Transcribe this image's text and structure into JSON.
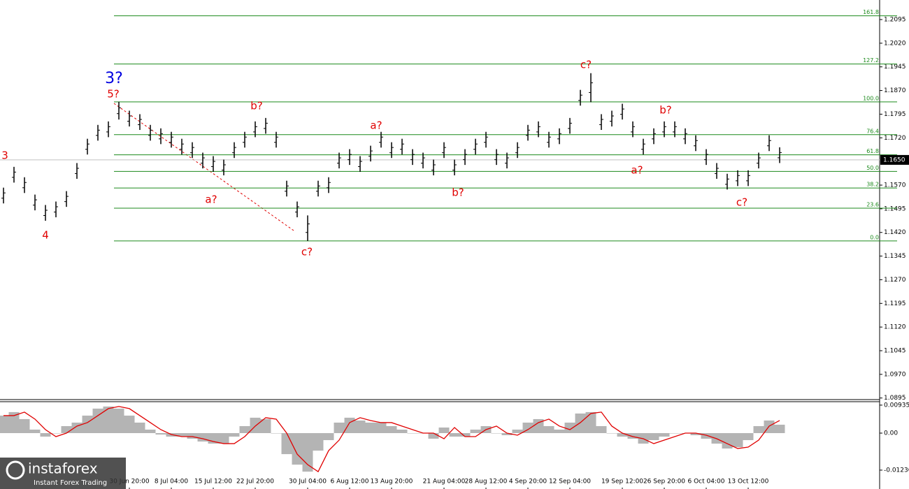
{
  "chart_data": [
    {
      "type": "range-bar",
      "categories": [
        null,
        null,
        null,
        null,
        null,
        null,
        null,
        null,
        null,
        null,
        null,
        null,
        "30 Jun 20:00",
        null,
        null,
        null,
        "8 Jul 04:00",
        null,
        null,
        null,
        "15 Jul 12:00",
        null,
        null,
        null,
        "22 Jul 20:00",
        null,
        null,
        null,
        null,
        "30 Jul 04:00",
        null,
        null,
        null,
        "6 Aug 12:00",
        null,
        null,
        null,
        "13 Aug 20:00",
        null,
        null,
        null,
        null,
        "21 Aug 04:00",
        null,
        null,
        null,
        "28 Aug 12:00",
        null,
        null,
        null,
        "4 Sep 20:00",
        null,
        null,
        null,
        "12 Sep 04:00",
        null,
        null,
        null,
        null,
        "19 Sep 12:00",
        null,
        null,
        null,
        "26 Sep 20:00",
        null,
        null,
        null,
        "6 Oct 04:00",
        null,
        null,
        null,
        "13 Oct 12:00",
        null,
        null,
        null
      ],
      "high": [
        1.1562,
        1.1628,
        1.1595,
        1.154,
        1.1507,
        1.1518,
        1.1551,
        1.164,
        1.1717,
        1.1761,
        1.1772,
        1.1834,
        1.1806,
        1.1795,
        1.1761,
        1.175,
        1.1739,
        1.1717,
        1.1706,
        1.1673,
        1.1662,
        1.1651,
        1.1706,
        1.1739,
        1.1772,
        1.1783,
        1.1739,
        1.1584,
        1.1518,
        1.1474,
        1.1584,
        1.1595,
        1.1673,
        1.1684,
        1.1662,
        1.1695,
        1.1739,
        1.1706,
        1.1717,
        1.1684,
        1.1673,
        1.1651,
        1.1706,
        1.1651,
        1.1684,
        1.1717,
        1.1739,
        1.1684,
        1.1673,
        1.1706,
        1.1761,
        1.1772,
        1.1739,
        1.175,
        1.1783,
        1.1872,
        1.1925,
        1.1795,
        1.1806,
        1.1828,
        1.1772,
        1.1717,
        1.175,
        1.1772,
        1.1772,
        1.175,
        1.1728,
        1.1684,
        1.164,
        1.1606,
        1.1617,
        1.1617,
        1.1673,
        1.1728,
        1.169
      ],
      "low": [
        1.1512,
        1.1578,
        1.1545,
        1.149,
        1.1457,
        1.1468,
        1.1501,
        1.159,
        1.1667,
        1.1711,
        1.1722,
        1.1778,
        1.1756,
        1.1745,
        1.1711,
        1.17,
        1.1689,
        1.1667,
        1.1656,
        1.1623,
        1.1612,
        1.1601,
        1.1656,
        1.1689,
        1.1722,
        1.1733,
        1.1689,
        1.1534,
        1.1468,
        1.1393,
        1.1534,
        1.1545,
        1.1623,
        1.1634,
        1.1612,
        1.1645,
        1.1689,
        1.1656,
        1.1667,
        1.1634,
        1.1623,
        1.1601,
        1.1656,
        1.1601,
        1.1634,
        1.1667,
        1.1689,
        1.1634,
        1.1623,
        1.1656,
        1.1711,
        1.1722,
        1.1689,
        1.17,
        1.1733,
        1.1822,
        1.1833,
        1.1745,
        1.1756,
        1.1778,
        1.1722,
        1.1667,
        1.17,
        1.1722,
        1.1722,
        1.17,
        1.1678,
        1.1634,
        1.159,
        1.1556,
        1.1567,
        1.1567,
        1.1623,
        1.1678,
        1.164
      ],
      "color": "#000000",
      "ylim": [
        1.089,
        1.2157
      ],
      "yticks": [
        1.2095,
        {
          "value": 1.202,
          "label": "1.2020"
        },
        1.1945,
        {
          "value": 1.187,
          "label": "1.1870"
        },
        1.1795,
        {
          "value": 1.172,
          "label": "1.1720"
        },
        {
          "value": 1.157,
          "label": "1.1570"
        },
        1.1495,
        {
          "value": 1.142,
          "label": "1.1420"
        },
        1.1345,
        {
          "value": 1.127,
          "label": "1.1270"
        },
        1.1195,
        {
          "value": 1.112,
          "label": "1.1120"
        },
        1.1045,
        {
          "value": 1.097,
          "label": "1.0970"
        },
        1.0895
      ],
      "current_price": {
        "value": 1.165,
        "label": "1.1650"
      },
      "fib_levels": [
        {
          "label": "161.8",
          "price": 1.2107
        },
        {
          "label": "127.2",
          "price": 1.1954
        },
        {
          "label": "100.0",
          "price": 1.1834
        },
        {
          "label": "76.4",
          "price": 1.173
        },
        {
          "label": "61.8",
          "price": 1.1666
        },
        {
          "label": "50.0",
          "price": 1.16135
        },
        {
          "label": "38.2",
          "price": 1.1561
        },
        {
          "label": "23.6",
          "price": 1.1497
        },
        {
          "label": "0.0",
          "price": 1.1393
        }
      ],
      "annotations": [
        "3",
        "4",
        "3?",
        "5?",
        "a?",
        "b?",
        "c?",
        "a?",
        "b?",
        "c?",
        "a?",
        "b?",
        "c?"
      ]
    },
    {
      "type": "histogram-line",
      "histogram": [
        0.00585,
        0.00702,
        0.00468,
        0.00117,
        -0.00117,
        0,
        0.00234,
        0.00351,
        0.00585,
        0.00819,
        0.00889,
        0.00819,
        0.00585,
        0.00351,
        0.00117,
        -0.00047,
        -0.00117,
        -0.00117,
        -0.00187,
        -0.00281,
        -0.00351,
        -0.00351,
        -0.00117,
        0.00234,
        0.00515,
        0.00468,
        0,
        -0.00702,
        -0.01053,
        -0.01287,
        -0.00585,
        -0.00234,
        0.00351,
        0.00515,
        0.00421,
        0.00351,
        0.00351,
        0.00234,
        0.00117,
        0,
        0,
        -0.00187,
        0.00187,
        -0.00117,
        -0.00117,
        0.00117,
        0.00234,
        0,
        -0.0007,
        0.00117,
        0.00351,
        0.00468,
        0.00234,
        0.00117,
        0.00351,
        0.00655,
        0.00702,
        0.00234,
        0,
        -0.00117,
        -0.00187,
        -0.00351,
        -0.00234,
        -0.00117,
        0,
        0,
        -0.0007,
        -0.00187,
        -0.00351,
        -0.00515,
        -0.00468,
        -0.00234,
        0.00234,
        0.00421,
        0.00281
      ],
      "signal": [
        0.00585,
        0.00585,
        0.00702,
        0.00468,
        0.00117,
        -0.00117,
        0,
        0.00234,
        0.00351,
        0.00585,
        0.00819,
        0.00889,
        0.00819,
        0.00585,
        0.00351,
        0.00117,
        -0.00047,
        -0.00117,
        -0.00117,
        -0.00187,
        -0.00281,
        -0.00351,
        -0.00351,
        -0.00117,
        0.00234,
        0.00515,
        0.00468,
        0,
        -0.00702,
        -0.01053,
        -0.01287,
        -0.00585,
        -0.00234,
        0.00351,
        0.00515,
        0.00421,
        0.00351,
        0.00351,
        0.00234,
        0.00117,
        0,
        0,
        -0.00187,
        0.00187,
        -0.00117,
        -0.00117,
        0.00117,
        0.00234,
        0,
        -0.0007,
        0.00117,
        0.00351,
        0.00468,
        0.00234,
        0.00117,
        0.00351,
        0.00655,
        0.00702,
        0.00234,
        0,
        -0.00117,
        -0.00187,
        -0.00351,
        -0.00234,
        -0.00117,
        0,
        0,
        -0.0007,
        -0.00187,
        -0.00351,
        -0.00515,
        -0.00468,
        -0.00234,
        0.00234,
        0.00421
      ],
      "histogram_color": "#b4b4b4",
      "signal_color": "#e00000",
      "ylim": [
        -0.0182,
        0.0105
      ],
      "yticks": [
        0.00935,
        {
          "value": 0,
          "label": "0.00"
        },
        -0.01236
      ]
    }
  ],
  "branding": {
    "name": "instaforex",
    "tagline": "Instant Forex Trading"
  }
}
